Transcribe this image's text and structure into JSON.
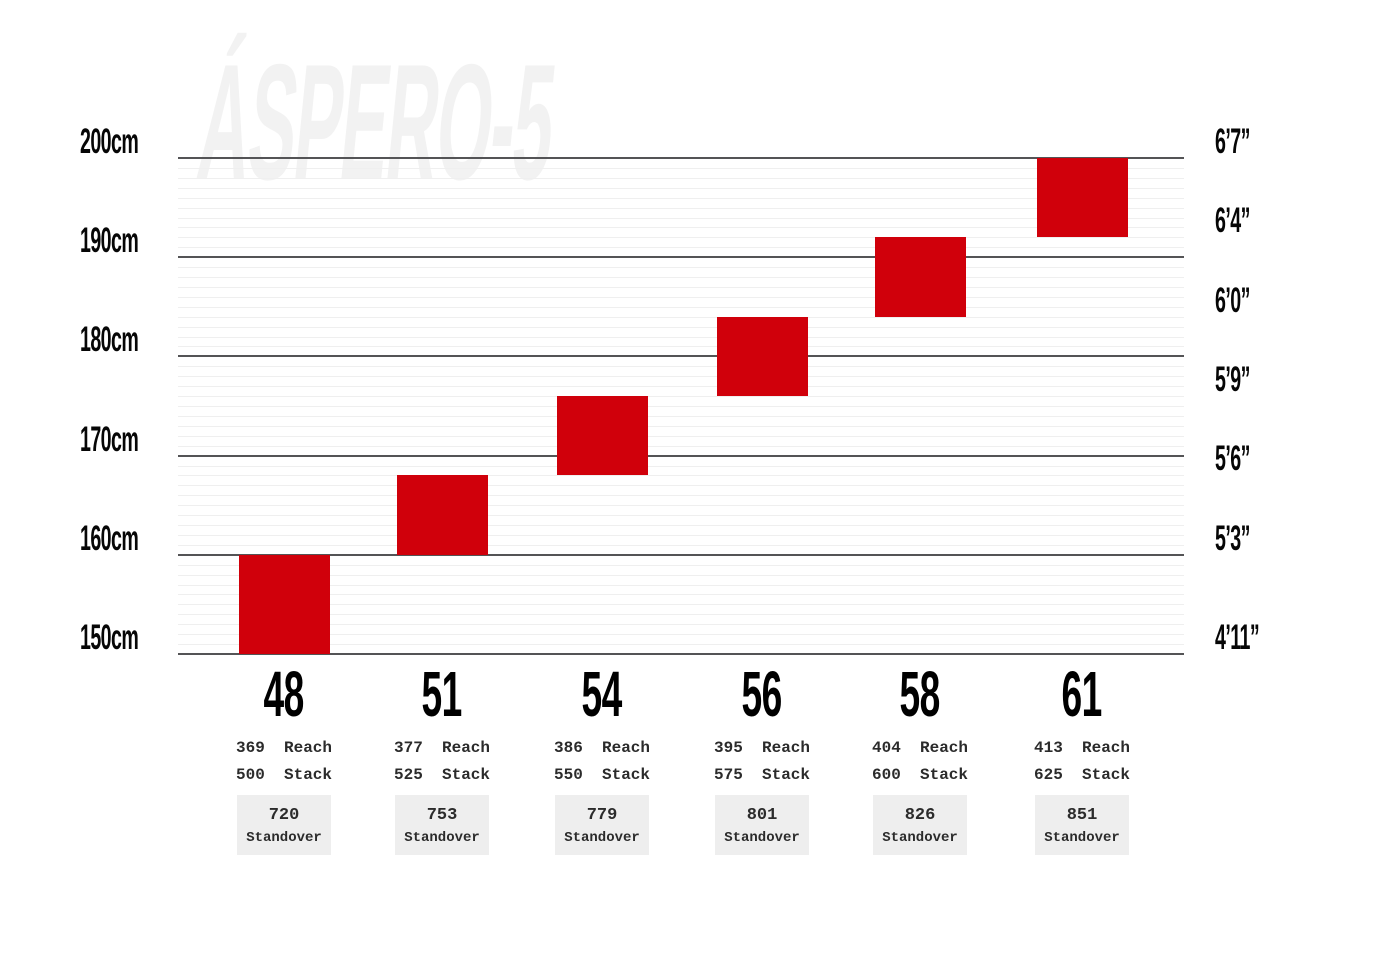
{
  "colors": {
    "bar_red": "#d0000b",
    "grid_major": "#545456",
    "grid_minor": "#efefef",
    "standover_bg": "#eeeeee",
    "watermark": "#f2f2f2",
    "tick_text": "#060606",
    "spec_text": "#2b2b2b"
  },
  "chart_data": {
    "type": "bar",
    "title": "ÁSPERO-5",
    "subtitle": "",
    "orientation": "vertical-range",
    "grid": "on",
    "legend": "none",
    "y_axis_left": {
      "unit": "cm",
      "range": [
        150,
        200
      ],
      "major_tick_step_cm": 10,
      "minor_tick_step_cm": 1,
      "ticks": [
        {
          "label": "150cm",
          "cm": 150
        },
        {
          "label": "160cm",
          "cm": 160
        },
        {
          "label": "170cm",
          "cm": 170
        },
        {
          "label": "180cm",
          "cm": 180
        },
        {
          "label": "190cm",
          "cm": 190
        },
        {
          "label": "200cm",
          "cm": 200
        }
      ]
    },
    "y_axis_right": {
      "unit": "feet-inches",
      "ticks": [
        {
          "label": "4’11”",
          "cm": 150
        },
        {
          "label": "5’3”",
          "cm": 160
        },
        {
          "label": "5’6”",
          "cm": 168
        },
        {
          "label": "5’9”",
          "cm": 176
        },
        {
          "label": "6’0”",
          "cm": 184
        },
        {
          "label": "6’4”",
          "cm": 192
        },
        {
          "label": "6’7”",
          "cm": 200
        }
      ]
    },
    "labels": {
      "reach": "Reach",
      "stack": "Stack",
      "standover": "Standover"
    },
    "series": [
      {
        "size": "48",
        "rider_height_cm": [
          150,
          160
        ],
        "reach": "369",
        "stack": "500",
        "standover": "720"
      },
      {
        "size": "51",
        "rider_height_cm": [
          160,
          168
        ],
        "reach": "377",
        "stack": "525",
        "standover": "753"
      },
      {
        "size": "54",
        "rider_height_cm": [
          168,
          176
        ],
        "reach": "386",
        "stack": "550",
        "standover": "779"
      },
      {
        "size": "56",
        "rider_height_cm": [
          176,
          184
        ],
        "reach": "395",
        "stack": "575",
        "standover": "801"
      },
      {
        "size": "58",
        "rider_height_cm": [
          184,
          192
        ],
        "reach": "404",
        "stack": "600",
        "standover": "826"
      },
      {
        "size": "61",
        "rider_height_cm": [
          192,
          200
        ],
        "reach": "413",
        "stack": "625",
        "standover": "851"
      }
    ]
  }
}
